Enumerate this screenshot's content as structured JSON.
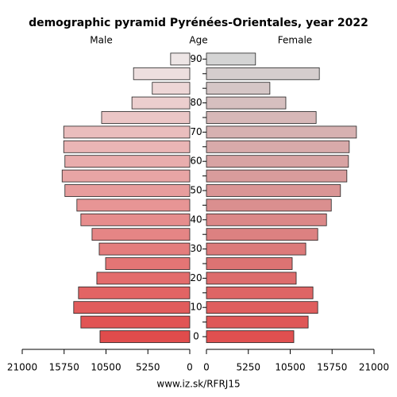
{
  "chart_data": {
    "type": "pyramid",
    "title": "demographic pyramid Pyrénées-Orientales, year 2022",
    "y_label": "Age",
    "footer": "www.iz.sk/RFRJ15",
    "categories": [
      "0",
      null,
      "10",
      null,
      "20",
      null,
      "30",
      null,
      "40",
      null,
      "50",
      null,
      "60",
      null,
      "70",
      null,
      "80",
      null,
      null,
      "90"
    ],
    "series": [
      {
        "name": "Male",
        "side": "left",
        "values": [
          11250,
          13650,
          14550,
          13950,
          11650,
          10550,
          11350,
          12250,
          13650,
          14150,
          15650,
          16000,
          15650,
          15800,
          15800,
          11050,
          7250,
          4700,
          7050,
          2400
        ],
        "colors": [
          "#e04c4c",
          "#e15454",
          "#e15c5c",
          "#e26464",
          "#e36c6c",
          "#e47575",
          "#e47d7d",
          "#e58585",
          "#e68d8d",
          "#e79595",
          "#e79d9d",
          "#e8a5a5",
          "#e9adad",
          "#eab5b5",
          "#eabdbd",
          "#ebc6c6",
          "#eccece",
          "#edd6d6",
          "#eddede",
          "#eee6e6"
        ]
      },
      {
        "name": "Female",
        "side": "right",
        "values": [
          10950,
          12750,
          13950,
          13350,
          11250,
          10750,
          12450,
          13950,
          15050,
          15650,
          16800,
          17600,
          17800,
          17900,
          18800,
          13750,
          9950,
          7950,
          14150,
          6150
        ],
        "colors": [
          "#e05050",
          "#df5757",
          "#df5e5e",
          "#de6565",
          "#dd6c6c",
          "#dd7373",
          "#dc7a7a",
          "#dc8181",
          "#db8888",
          "#da8f8f",
          "#da9595",
          "#d99c9c",
          "#d8a3a3",
          "#d8aaaa",
          "#d7b1b1",
          "#d7b8b8",
          "#d6bfbf",
          "#d5c6c6",
          "#d5cdcd",
          "#d4d4d4"
        ]
      }
    ],
    "xlim": [
      0,
      21000
    ],
    "xticks": [
      0,
      5250,
      10500,
      15750,
      21000
    ]
  }
}
